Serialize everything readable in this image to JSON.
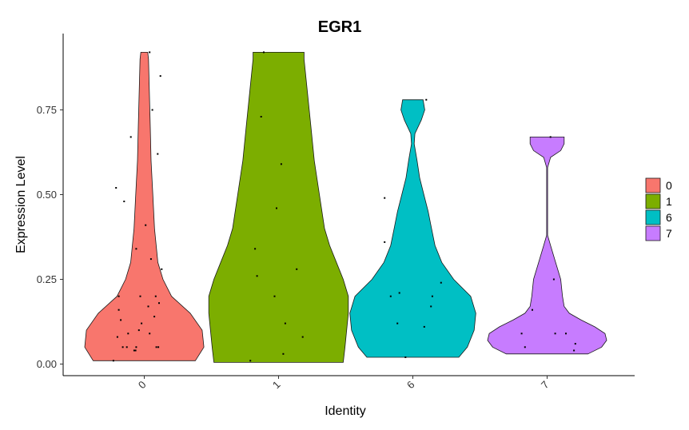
{
  "chart_data": {
    "type": "violin",
    "title": "EGR1",
    "xlabel": "Identity",
    "ylabel": "Expression Level",
    "ylim": [
      -0.03,
      0.925
    ],
    "yticks": [
      "0.00",
      "0.25",
      "0.50",
      "0.75"
    ],
    "ytick_values": [
      0,
      0.25,
      0.5,
      0.75
    ],
    "categories": [
      "0",
      "1",
      "6",
      "7"
    ],
    "grid": false,
    "legend_position": "right",
    "series": [
      {
        "name": "0",
        "color": "#F8766D",
        "min": 0.01,
        "max": 0.92,
        "profile": [
          [
            0.01,
            0.3
          ],
          [
            0.05,
            0.35
          ],
          [
            0.1,
            0.34
          ],
          [
            0.15,
            0.27
          ],
          [
            0.2,
            0.16
          ],
          [
            0.25,
            0.11
          ],
          [
            0.3,
            0.08
          ],
          [
            0.4,
            0.06
          ],
          [
            0.5,
            0.05
          ],
          [
            0.6,
            0.04
          ],
          [
            0.7,
            0.035
          ],
          [
            0.8,
            0.03
          ],
          [
            0.9,
            0.025
          ],
          [
            0.92,
            0.02
          ]
        ],
        "points": [
          [
            -0.46,
            0.01
          ],
          [
            -0.4,
            0.08
          ],
          [
            -0.32,
            0.05
          ],
          [
            -0.35,
            0.13
          ],
          [
            -0.38,
            0.16
          ],
          [
            -0.38,
            0.2
          ],
          [
            -0.42,
            0.52
          ],
          [
            -0.3,
            0.48
          ],
          [
            -0.26,
            0.05
          ],
          [
            -0.24,
            0.09
          ],
          [
            -0.2,
            0.67
          ],
          [
            -0.15,
            0.04
          ],
          [
            -0.13,
            0.04
          ],
          [
            -0.12,
            0.05
          ],
          [
            -0.12,
            0.34
          ],
          [
            -0.08,
            0.1
          ],
          [
            -0.06,
            0.2
          ],
          [
            -0.04,
            0.12
          ],
          [
            0.02,
            0.41
          ],
          [
            0.06,
            0.17
          ],
          [
            0.08,
            0.09
          ],
          [
            0.1,
            0.31
          ],
          [
            0.12,
            0.75
          ],
          [
            0.15,
            0.14
          ],
          [
            0.17,
            0.2
          ],
          [
            0.18,
            0.05
          ],
          [
            0.2,
            0.62
          ],
          [
            0.21,
            0.05
          ],
          [
            0.22,
            0.18
          ],
          [
            0.24,
            0.85
          ],
          [
            0.26,
            0.28
          ],
          [
            0.08,
            0.92
          ]
        ]
      },
      {
        "name": "1",
        "color": "#7CAE00",
        "min": 0.005,
        "max": 0.92,
        "profile": [
          [
            0.005,
            0.38
          ],
          [
            0.05,
            0.39
          ],
          [
            0.1,
            0.4
          ],
          [
            0.15,
            0.41
          ],
          [
            0.2,
            0.41
          ],
          [
            0.25,
            0.38
          ],
          [
            0.3,
            0.34
          ],
          [
            0.35,
            0.3
          ],
          [
            0.4,
            0.27
          ],
          [
            0.5,
            0.24
          ],
          [
            0.6,
            0.21
          ],
          [
            0.7,
            0.19
          ],
          [
            0.8,
            0.17
          ],
          [
            0.9,
            0.15
          ],
          [
            0.92,
            0.15
          ]
        ],
        "points": [
          [
            -0.42,
            0.01
          ],
          [
            -0.35,
            0.34
          ],
          [
            -0.32,
            0.26
          ],
          [
            -0.26,
            0.73
          ],
          [
            -0.22,
            0.92
          ],
          [
            -0.06,
            0.2
          ],
          [
            -0.03,
            0.46
          ],
          [
            0.04,
            0.59
          ],
          [
            0.07,
            0.03
          ],
          [
            0.1,
            0.12
          ],
          [
            0.27,
            0.28
          ],
          [
            0.36,
            0.08
          ]
        ]
      },
      {
        "name": "6",
        "color": "#00BFC4",
        "min": 0.02,
        "max": 0.78,
        "profile": [
          [
            0.02,
            0.27
          ],
          [
            0.05,
            0.32
          ],
          [
            0.1,
            0.36
          ],
          [
            0.15,
            0.37
          ],
          [
            0.2,
            0.34
          ],
          [
            0.25,
            0.24
          ],
          [
            0.3,
            0.17
          ],
          [
            0.35,
            0.13
          ],
          [
            0.4,
            0.11
          ],
          [
            0.45,
            0.09
          ],
          [
            0.5,
            0.065
          ],
          [
            0.55,
            0.04
          ],
          [
            0.6,
            0.025
          ],
          [
            0.65,
            0.008
          ],
          [
            0.68,
            0.012
          ],
          [
            0.72,
            0.05
          ],
          [
            0.75,
            0.07
          ],
          [
            0.78,
            0.06
          ]
        ],
        "points": [
          [
            -0.42,
            0.49
          ],
          [
            -0.42,
            0.36
          ],
          [
            -0.33,
            0.2
          ],
          [
            -0.23,
            0.12
          ],
          [
            -0.2,
            0.21
          ],
          [
            -0.11,
            0.02
          ],
          [
            0.17,
            0.11
          ],
          [
            0.27,
            0.17
          ],
          [
            0.29,
            0.2
          ],
          [
            0.42,
            0.24
          ],
          [
            0.2,
            0.78
          ]
        ]
      },
      {
        "name": "7",
        "color": "#C77CFF",
        "min": 0.03,
        "max": 0.67,
        "profile": [
          [
            0.03,
            0.24
          ],
          [
            0.05,
            0.32
          ],
          [
            0.07,
            0.35
          ],
          [
            0.09,
            0.34
          ],
          [
            0.11,
            0.28
          ],
          [
            0.13,
            0.2
          ],
          [
            0.15,
            0.13
          ],
          [
            0.17,
            0.1
          ],
          [
            0.2,
            0.09
          ],
          [
            0.25,
            0.08
          ],
          [
            0.3,
            0.05
          ],
          [
            0.35,
            0.02
          ],
          [
            0.38,
            0.003
          ],
          [
            0.5,
            0.003
          ],
          [
            0.58,
            0.003
          ],
          [
            0.61,
            0.02
          ],
          [
            0.63,
            0.08
          ],
          [
            0.65,
            0.1
          ],
          [
            0.67,
            0.1
          ]
        ],
        "points": [
          [
            -0.38,
            0.09
          ],
          [
            -0.33,
            0.05
          ],
          [
            -0.22,
            0.16
          ],
          [
            0.05,
            0.67
          ],
          [
            0.1,
            0.25
          ],
          [
            0.12,
            0.09
          ],
          [
            0.28,
            0.09
          ],
          [
            0.4,
            0.04
          ],
          [
            0.42,
            0.06
          ]
        ]
      }
    ]
  }
}
